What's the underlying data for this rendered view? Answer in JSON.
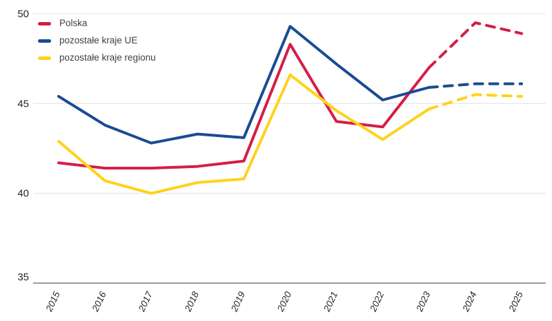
{
  "chart_data": {
    "type": "line",
    "title": "",
    "xlabel": "",
    "ylabel": "",
    "x": [
      2015,
      2016,
      2017,
      2018,
      2019,
      2020,
      2021,
      2022,
      2023,
      2024,
      2025
    ],
    "series": [
      {
        "name": "Polska",
        "color": "#D41E46",
        "values": [
          41.7,
          41.4,
          41.4,
          41.5,
          41.8,
          48.3,
          44.0,
          43.7,
          47.0,
          49.5,
          48.9
        ],
        "forecast_from": 2023,
        "forecast_style": "dashed"
      },
      {
        "name": "pozostałe kraje UE",
        "color": "#1A4B94",
        "values": [
          45.4,
          43.8,
          42.8,
          43.3,
          43.1,
          49.3,
          47.2,
          45.2,
          45.9,
          46.1,
          46.1
        ],
        "forecast_from": 2023,
        "forecast_style": "dashed"
      },
      {
        "name": "pozostałe kraje regionu",
        "color": "#FFD21C",
        "values": [
          42.9,
          40.7,
          40.0,
          40.6,
          40.8,
          46.6,
          44.6,
          43.0,
          44.7,
          45.5,
          45.4
        ],
        "forecast_from": 2023,
        "forecast_style": "dashed"
      }
    ],
    "ylim": [
      35,
      50
    ],
    "yticks": [
      50,
      45,
      40,
      35
    ],
    "grid": "horizontal",
    "legend_position": "top-left"
  },
  "legend": {
    "items": [
      {
        "label": "Polska"
      },
      {
        "label": "pozostałe kraje UE"
      },
      {
        "label": "pozostałe kraje regionu"
      }
    ]
  },
  "colors": {
    "background": "#FFFFFF",
    "gridline": "#E8E8E8",
    "axis_line": "#9C9C9C",
    "tick_text": "#262626",
    "legend_text": "#404040"
  }
}
